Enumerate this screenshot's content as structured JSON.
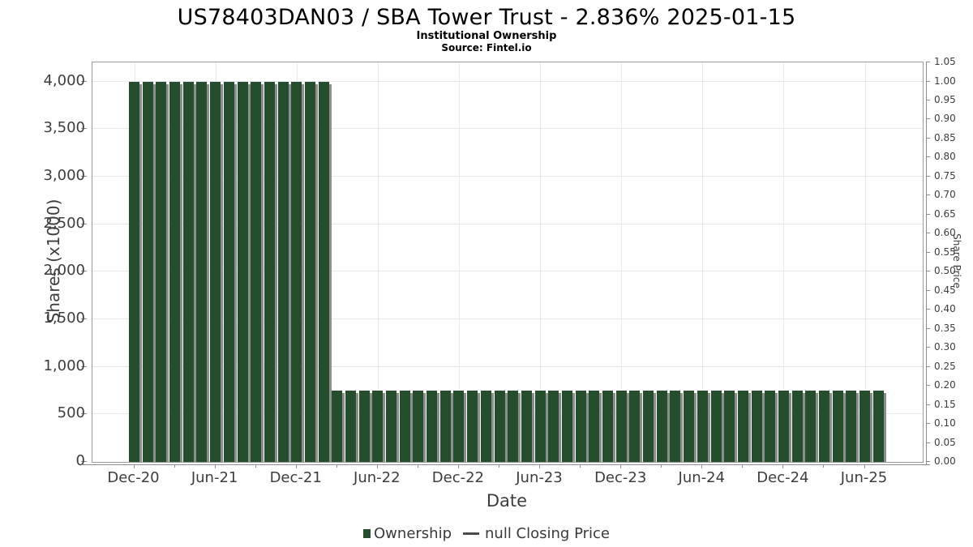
{
  "chart_data": {
    "type": "bar",
    "title": "US78403DAN03 / SBA Tower Trust - 2.836% 2025-01-15",
    "subtitle": "Institutional Ownership",
    "source": "Source: Fintel.io",
    "months": [
      "Dec-20",
      "Jan-21",
      "Feb-21",
      "Mar-21",
      "Apr-21",
      "May-21",
      "Jun-21",
      "Jul-21",
      "Aug-21",
      "Sep-21",
      "Oct-21",
      "Nov-21",
      "Dec-21",
      "Jan-22",
      "Feb-22",
      "Mar-22",
      "Apr-22",
      "May-22",
      "Jun-22",
      "Jul-22",
      "Aug-22",
      "Sep-22",
      "Oct-22",
      "Nov-22",
      "Dec-22",
      "Jan-23",
      "Feb-23",
      "Mar-23",
      "Apr-23",
      "May-23",
      "Jun-23",
      "Jul-23",
      "Aug-23",
      "Sep-23",
      "Oct-23",
      "Nov-23",
      "Dec-23",
      "Jan-24",
      "Feb-24",
      "Mar-24",
      "Apr-24",
      "May-24",
      "Jun-24",
      "Jul-24",
      "Aug-24",
      "Sep-24",
      "Oct-24",
      "Nov-24",
      "Dec-24",
      "Jan-25",
      "Feb-25",
      "Mar-25",
      "Apr-25",
      "May-25",
      "Jun-25",
      "Jul-25"
    ],
    "values": [
      4000,
      4000,
      4000,
      4000,
      4000,
      4000,
      4000,
      4000,
      4000,
      4000,
      4000,
      4000,
      4000,
      4000,
      4000,
      750,
      750,
      750,
      750,
      750,
      750,
      750,
      750,
      750,
      750,
      750,
      750,
      750,
      750,
      750,
      750,
      750,
      750,
      750,
      750,
      750,
      750,
      750,
      750,
      750,
      750,
      750,
      750,
      750,
      750,
      750,
      750,
      750,
      750,
      750,
      750,
      750,
      750,
      750,
      750,
      750
    ],
    "series": [
      {
        "name": "Ownership",
        "type": "bar"
      },
      {
        "name": "null Closing Price",
        "type": "line",
        "values": null
      }
    ],
    "x_axis": {
      "label": "Date",
      "tick_labels": [
        "Dec-20",
        "Jun-21",
        "Dec-21",
        "Jun-22",
        "Dec-22",
        "Jun-23",
        "Dec-23",
        "Jun-24",
        "Dec-24",
        "Jun-25"
      ],
      "tick_indices": [
        0,
        6,
        12,
        18,
        24,
        30,
        36,
        42,
        48,
        54
      ],
      "minor_tick_step_months": 3
    },
    "y_left": {
      "label": "Shares (x1000)",
      "tick_values": [
        0,
        500,
        1000,
        1500,
        2000,
        2500,
        3000,
        3500,
        4000
      ],
      "tick_labels": [
        "0",
        "500",
        "1,000",
        "1,500",
        "2,000",
        "2,500",
        "3,000",
        "3,500",
        "4,000"
      ],
      "range": [
        0,
        4200
      ]
    },
    "y_right": {
      "label": "Share Price",
      "tick_values": [
        0.0,
        0.05,
        0.1,
        0.15,
        0.2,
        0.25,
        0.3,
        0.35,
        0.4,
        0.45,
        0.5,
        0.55,
        0.6,
        0.65,
        0.7,
        0.75,
        0.8,
        0.85,
        0.9,
        0.95,
        1.0,
        1.05
      ],
      "tick_labels": [
        "0.00",
        "0.05",
        "0.10",
        "0.15",
        "0.20",
        "0.25",
        "0.30",
        "0.35",
        "0.40",
        "0.45",
        "0.50",
        "0.55",
        "0.60",
        "0.65",
        "0.70",
        "0.75",
        "0.80",
        "0.85",
        "0.90",
        "0.95",
        "1.00",
        "1.05"
      ],
      "range": [
        0,
        1.05
      ]
    },
    "legend": [
      {
        "label": "Ownership",
        "marker": "square",
        "color": "#254e2c"
      },
      {
        "label": "null Closing Price",
        "marker": "line",
        "color": "#4a4a4a"
      }
    ],
    "grid": true,
    "colors": {
      "bar": "#254e2c",
      "bar_shadow": "#8e8e8e",
      "grid": "#e8e8e8",
      "axis": "#8c8c8c",
      "text": "#3d3d3d"
    }
  }
}
